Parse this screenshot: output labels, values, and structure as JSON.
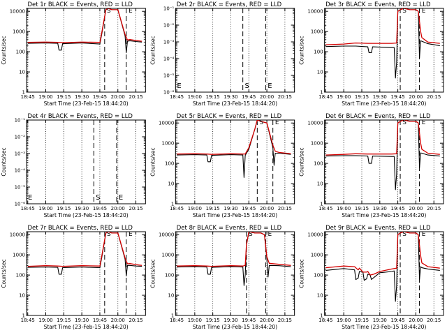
{
  "colors": {
    "events": "#000000",
    "lld": "#d40000",
    "background": "#ffffff",
    "frame": "#000000"
  },
  "chart_data": [
    {
      "type": "line",
      "title": "Det 1r BLACK = Events, RED = LLD",
      "xlabel": "Start Time (23-Feb-15 18:44:20)",
      "ylabel": "Counts/sec",
      "xticks": [
        "18:45",
        "19:00",
        "19:15",
        "19:30",
        "19:45",
        "20:00",
        "20:15"
      ],
      "y_scale": "log",
      "ylim": [
        1,
        14000
      ],
      "yticks": [
        "1",
        "10",
        "100",
        "1000",
        "10000"
      ],
      "markers": [
        {
          "label": "S",
          "x": "19:49"
        },
        {
          "label": "E",
          "x": "20:07"
        }
      ],
      "series": [
        {
          "name": "Events",
          "x": [
            "18:45",
            "19:00",
            "19:10",
            "19:11",
            "19:13",
            "19:14",
            "19:30",
            "19:45",
            "19:47",
            "19:50",
            "19:52",
            "19:55",
            "20:00",
            "20:06",
            "20:07",
            "20:08",
            "20:10",
            "20:15",
            "20:20"
          ],
          "y": [
            260,
            270,
            260,
            120,
            120,
            250,
            270,
            240,
            1000,
            12000,
            14000,
            12000,
            12000,
            600,
            90,
            330,
            350,
            320,
            300
          ]
        },
        {
          "name": "LLD",
          "x": [
            "18:45",
            "19:00",
            "19:10",
            "19:14",
            "19:30",
            "19:45",
            "19:47",
            "19:50",
            "19:52",
            "19:55",
            "20:00",
            "20:06",
            "20:08",
            "20:10",
            "20:15",
            "20:20"
          ],
          "y": [
            290,
            300,
            290,
            280,
            300,
            290,
            1200,
            12000,
            14000,
            12000,
            12000,
            700,
            380,
            400,
            360,
            330
          ]
        }
      ]
    },
    {
      "type": "line",
      "title": "Det 2r BLACK = Events, RED = LLD",
      "xlabel": "Start Time (23-Feb-15 18:44:20)",
      "ylabel": "Counts/sec",
      "xticks": [
        "18:45",
        "19:00",
        "19:15",
        "19:30",
        "19:45",
        "20:00",
        "20:15"
      ],
      "y_scale": "log",
      "ylim": [
        1e-06,
        0.1
      ],
      "yticks": [
        "10⁻⁶",
        "10⁻⁵",
        "10⁻⁴",
        "10⁻³",
        "10⁻²",
        "10⁻¹"
      ],
      "markers": [
        {
          "label": "S",
          "x": "19:40"
        },
        {
          "label": "E",
          "x": "19:59"
        }
      ],
      "series": []
    },
    {
      "type": "line",
      "title": "Det 3r BLACK = Events, RED = LLD",
      "xlabel": "Start Time (23-Feb-15 18:44:20)",
      "ylabel": "Counts/sec",
      "xticks": [
        "18:45",
        "19:00",
        "19:15",
        "19:30",
        "19:45",
        "20:00",
        "20:15"
      ],
      "y_scale": "log",
      "ylim": [
        1,
        14000
      ],
      "yticks": [
        "1",
        "10",
        "100",
        "1000",
        "10000"
      ],
      "markers": [
        {
          "label": "S",
          "x": "19:47"
        },
        {
          "label": "E",
          "x": "20:03"
        }
      ],
      "series": [
        {
          "name": "Events",
          "x": [
            "18:45",
            "19:00",
            "19:10",
            "19:20",
            "19:21",
            "19:23",
            "19:24",
            "19:40",
            "19:42",
            "19:43",
            "19:44",
            "19:45",
            "19:47",
            "19:50",
            "19:55",
            "20:00",
            "20:02",
            "20:03",
            "20:04",
            "20:05",
            "20:10",
            "20:20"
          ],
          "y": [
            180,
            190,
            190,
            175,
            90,
            90,
            175,
            160,
            160,
            5,
            30,
            10000,
            12000,
            14000,
            12000,
            12000,
            10000,
            50,
            350,
            330,
            250,
            200
          ]
        },
        {
          "name": "LLD",
          "x": [
            "18:45",
            "19:00",
            "19:10",
            "19:20",
            "19:30",
            "19:40",
            "19:44",
            "19:45",
            "19:47",
            "19:50",
            "19:55",
            "20:00",
            "20:02",
            "20:04",
            "20:05",
            "20:10",
            "20:20"
          ],
          "y": [
            220,
            240,
            270,
            260,
            260,
            260,
            270,
            10000,
            12000,
            14000,
            12000,
            12000,
            10000,
            1000,
            500,
            300,
            260
          ]
        }
      ]
    },
    {
      "type": "line",
      "title": "Det 4r BLACK = Events, RED = LLD",
      "xlabel": "Start Time (23-Feb-15 18:44:20)",
      "ylabel": "Counts/sec",
      "xticks": [
        "18:45",
        "19:00",
        "19:15",
        "19:30",
        "19:45",
        "20:00",
        "20:15"
      ],
      "y_scale": "log",
      "ylim": [
        1e-06,
        0.1
      ],
      "yticks": [
        "10⁻⁶",
        "10⁻⁵",
        "10⁻⁴",
        "10⁻³",
        "10⁻²",
        "10⁻¹"
      ],
      "markers": [
        {
          "label": "S",
          "x": "19:40"
        },
        {
          "label": "E",
          "x": "19:59"
        }
      ],
      "series": []
    },
    {
      "type": "line",
      "title": "Det 5r BLACK = Events, RED = LLD",
      "xlabel": "Start Time (23-Feb-15 18:44:20)",
      "ylabel": "Counts/sec",
      "xticks": [
        "18:45",
        "19:00",
        "19:15",
        "19:30",
        "19:45",
        "20:00",
        "20:15"
      ],
      "y_scale": "log",
      "ylim": [
        1,
        14000
      ],
      "yticks": [
        "1",
        "10",
        "100",
        "1000",
        "10000"
      ],
      "markers": [
        {
          "label": "S",
          "x": "19:52"
        },
        {
          "label": "E",
          "x": "20:05"
        }
      ],
      "series": [
        {
          "name": "Events",
          "x": [
            "18:45",
            "19:00",
            "19:10",
            "19:11",
            "19:13",
            "19:14",
            "19:30",
            "19:40",
            "19:41",
            "19:42",
            "19:45",
            "19:50",
            "19:52",
            "19:55",
            "20:00",
            "20:05",
            "20:06",
            "20:07",
            "20:10",
            "20:20"
          ],
          "y": [
            260,
            270,
            260,
            120,
            120,
            250,
            270,
            260,
            20,
            250,
            500,
            5000,
            14000,
            12000,
            10000,
            600,
            80,
            320,
            320,
            280
          ]
        },
        {
          "name": "LLD",
          "x": [
            "18:45",
            "19:00",
            "19:10",
            "19:14",
            "19:30",
            "19:40",
            "19:42",
            "19:45",
            "19:50",
            "19:52",
            "19:55",
            "20:00",
            "20:05",
            "20:07",
            "20:10",
            "20:20"
          ],
          "y": [
            290,
            300,
            290,
            280,
            300,
            290,
            290,
            600,
            5000,
            14000,
            12000,
            10000,
            800,
            400,
            350,
            300
          ]
        }
      ]
    },
    {
      "type": "line",
      "title": "Det 6r BLACK = Events, RED = LLD",
      "xlabel": "Start Time (23-Feb-15 18:44:20)",
      "ylabel": "Counts/sec",
      "xticks": [
        "18:45",
        "19:00",
        "19:15",
        "19:30",
        "19:45",
        "20:00",
        "20:15"
      ],
      "y_scale": "log",
      "ylim": [
        1,
        14000
      ],
      "yticks": [
        "1",
        "10",
        "100",
        "1000",
        "10000"
      ],
      "markers": [
        {
          "label": "S",
          "x": "19:47"
        },
        {
          "label": "E",
          "x": "20:03"
        }
      ],
      "series": [
        {
          "name": "Events",
          "x": [
            "18:45",
            "19:00",
            "19:10",
            "19:20",
            "19:21",
            "19:23",
            "19:24",
            "19:40",
            "19:42",
            "19:43",
            "19:44",
            "19:45",
            "19:47",
            "19:50",
            "19:55",
            "20:00",
            "20:02",
            "20:03",
            "20:04",
            "20:05",
            "20:10",
            "20:20"
          ],
          "y": [
            230,
            240,
            240,
            230,
            100,
            100,
            230,
            220,
            220,
            5,
            30,
            10000,
            12000,
            14000,
            12000,
            12000,
            10000,
            60,
            330,
            320,
            260,
            230
          ]
        },
        {
          "name": "LLD",
          "x": [
            "18:45",
            "19:00",
            "19:10",
            "19:20",
            "19:30",
            "19:40",
            "19:44",
            "19:45",
            "19:47",
            "19:50",
            "19:55",
            "20:00",
            "20:02",
            "20:04",
            "20:05",
            "20:10",
            "20:20"
          ],
          "y": [
            260,
            280,
            300,
            290,
            290,
            290,
            300,
            10000,
            12000,
            14000,
            12000,
            12000,
            10000,
            1000,
            500,
            320,
            280
          ]
        }
      ]
    },
    {
      "type": "line",
      "title": "Det 7r BLACK = Events, RED = LLD",
      "xlabel": "Start Time (23-Feb-15 18:44:20)",
      "ylabel": "Counts/sec",
      "xticks": [
        "18:45",
        "19:00",
        "19:15",
        "19:30",
        "19:45",
        "20:00",
        "20:15"
      ],
      "y_scale": "log",
      "ylim": [
        1,
        14000
      ],
      "yticks": [
        "1",
        "10",
        "100",
        "1000",
        "10000"
      ],
      "markers": [
        {
          "label": "S",
          "x": "19:49"
        },
        {
          "label": "E",
          "x": "20:07"
        }
      ],
      "series": [
        {
          "name": "Events",
          "x": [
            "18:45",
            "19:00",
            "19:10",
            "19:11",
            "19:13",
            "19:14",
            "19:30",
            "19:45",
            "19:47",
            "19:50",
            "19:52",
            "19:55",
            "20:00",
            "20:06",
            "20:07",
            "20:08",
            "20:10",
            "20:15",
            "20:20"
          ],
          "y": [
            240,
            250,
            240,
            110,
            110,
            230,
            250,
            230,
            1000,
            12000,
            14000,
            12000,
            12000,
            600,
            90,
            300,
            300,
            280,
            270
          ]
        },
        {
          "name": "LLD",
          "x": [
            "18:45",
            "19:00",
            "19:10",
            "19:14",
            "19:30",
            "19:45",
            "19:47",
            "19:50",
            "19:52",
            "19:55",
            "20:00",
            "20:06",
            "20:08",
            "20:10",
            "20:15",
            "20:20"
          ],
          "y": [
            270,
            290,
            280,
            270,
            290,
            280,
            1200,
            12000,
            14000,
            12000,
            12000,
            700,
            360,
            370,
            330,
            300
          ]
        }
      ]
    },
    {
      "type": "line",
      "title": "Det 8r BLACK = Events, RED = LLD",
      "xlabel": "Start Time (23-Feb-15 18:44:20)",
      "ylabel": "Counts/sec",
      "xticks": [
        "18:45",
        "19:00",
        "19:15",
        "19:30",
        "19:45",
        "20:00",
        "20:15"
      ],
      "y_scale": "log",
      "ylim": [
        1,
        14000
      ],
      "yticks": [
        "1",
        "10",
        "100",
        "1000",
        "10000"
      ],
      "markers": [
        {
          "label": "S",
          "x": "19:43"
        },
        {
          "label": "E",
          "x": "19:59"
        }
      ],
      "series": [
        {
          "name": "Events",
          "x": [
            "18:45",
            "19:00",
            "19:10",
            "19:11",
            "19:13",
            "19:14",
            "19:30",
            "19:40",
            "19:41",
            "19:42",
            "19:43",
            "19:45",
            "19:50",
            "19:55",
            "19:58",
            "20:00",
            "20:01",
            "20:02",
            "20:10",
            "20:20"
          ],
          "y": [
            250,
            260,
            250,
            110,
            110,
            240,
            260,
            250,
            30,
            100,
            3000,
            14000,
            12000,
            12000,
            10000,
            600,
            80,
            300,
            290,
            260
          ]
        },
        {
          "name": "LLD",
          "x": [
            "18:45",
            "19:00",
            "19:10",
            "19:14",
            "19:30",
            "19:40",
            "19:42",
            "19:43",
            "19:45",
            "19:50",
            "19:55",
            "19:58",
            "20:00",
            "20:02",
            "20:10",
            "20:20"
          ],
          "y": [
            280,
            290,
            280,
            270,
            290,
            280,
            300,
            3000,
            14000,
            12000,
            12000,
            10000,
            800,
            380,
            340,
            300
          ]
        }
      ]
    },
    {
      "type": "line",
      "title": "Det 9r BLACK = Events, RED = LLD",
      "xlabel": "Start Time (23-Feb-15 18:44:20)",
      "ylabel": "Counts/sec",
      "xticks": [
        "18:45",
        "19:00",
        "19:15",
        "19:30",
        "19:45",
        "20:00",
        "20:15"
      ],
      "y_scale": "log",
      "ylim": [
        1,
        14000
      ],
      "yticks": [
        "1",
        "10",
        "100",
        "1000",
        "10000"
      ],
      "markers": [
        {
          "label": "S",
          "x": "19:47"
        },
        {
          "label": "E",
          "x": "20:03"
        }
      ],
      "series": [
        {
          "name": "Events",
          "x": [
            "18:45",
            "19:00",
            "19:09",
            "19:10",
            "19:12",
            "19:13",
            "19:16",
            "19:17",
            "19:19",
            "19:20",
            "19:22",
            "19:23",
            "19:25",
            "19:30",
            "19:40",
            "19:42",
            "19:43",
            "19:44",
            "19:45",
            "19:47",
            "19:50",
            "19:55",
            "20:00",
            "20:02",
            "20:03",
            "20:04",
            "20:05",
            "20:10",
            "20:20"
          ],
          "y": [
            170,
            210,
            180,
            60,
            70,
            150,
            140,
            55,
            65,
            110,
            100,
            60,
            75,
            130,
            150,
            160,
            5,
            30,
            10000,
            12000,
            14000,
            12000,
            12000,
            10000,
            60,
            260,
            230,
            200,
            170
          ]
        },
        {
          "name": "LLD",
          "x": [
            "18:45",
            "19:00",
            "19:09",
            "19:12",
            "19:13",
            "19:16",
            "19:19",
            "19:20",
            "19:22",
            "19:25",
            "19:30",
            "19:40",
            "19:44",
            "19:45",
            "19:47",
            "19:50",
            "19:55",
            "20:00",
            "20:02",
            "20:04",
            "20:05",
            "20:10",
            "20:20"
          ],
          "y": [
            230,
            280,
            260,
            180,
            220,
            140,
            140,
            150,
            100,
            110,
            150,
            200,
            220,
            10000,
            12000,
            14000,
            12000,
            12000,
            10000,
            900,
            400,
            260,
            220
          ]
        }
      ]
    }
  ]
}
